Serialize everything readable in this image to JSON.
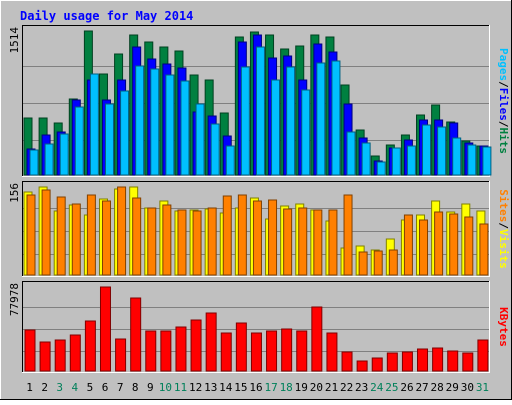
{
  "chart_data": {
    "type": "bar",
    "title": "Daily usage for May 2014",
    "categories": [
      "1",
      "2",
      "3",
      "4",
      "5",
      "6",
      "7",
      "8",
      "9",
      "10",
      "11",
      "12",
      "13",
      "14",
      "15",
      "16",
      "17",
      "18",
      "19",
      "20",
      "21",
      "22",
      "23",
      "24",
      "25",
      "26",
      "27",
      "28",
      "29",
      "30",
      "31"
    ],
    "weekend_days": [
      "3",
      "4",
      "10",
      "11",
      "17",
      "18",
      "24",
      "25",
      "31"
    ],
    "panels": [
      {
        "id": "top",
        "ymax": 1514,
        "ymax_label": "1514",
        "ylabel_parts": [
          "Pages",
          "Files",
          "Hits"
        ],
        "series": [
          {
            "name": "Hits",
            "color": "#008040",
            "values": [
              600,
              600,
              550,
              800,
              1514,
              1060,
              1270,
              1470,
              1400,
              1350,
              1300,
              1050,
              1000,
              650,
              1450,
              1500,
              1470,
              1320,
              1360,
              1470,
              1450,
              950,
              470,
              200,
              320,
              420,
              630,
              740,
              560,
              360,
              310
            ]
          },
          {
            "name": "Files",
            "color": "#0000ff",
            "values": [
              270,
              420,
              450,
              790,
              1000,
              790,
              1000,
              1350,
              1220,
              1170,
              1120,
              660,
              620,
              410,
              1400,
              1470,
              1230,
              1250,
              1000,
              1380,
              1290,
              750,
              390,
              150,
              280,
              370,
              580,
              580,
              550,
              340,
              310
            ]
          },
          {
            "name": "Pages",
            "color": "#00c0ff",
            "values": [
              260,
              330,
              430,
              720,
              1060,
              750,
              880,
              1150,
              1110,
              1050,
              990,
              750,
              540,
              310,
              1140,
              1350,
              1000,
              1140,
              890,
              1180,
              1200,
              450,
              340,
              140,
              280,
              300,
              530,
              500,
              390,
              320,
              290
            ]
          }
        ]
      },
      {
        "id": "middle",
        "ymax": 156,
        "ymax_label": "156",
        "ylabel_parts": [
          "Sites",
          "Visits"
        ],
        "series": [
          {
            "name": "Visits",
            "color": "#ffff00",
            "values": [
              147,
              156,
              113,
              124,
              106,
              135,
              153,
              156,
              118,
              132,
              113,
              116,
              117,
              110,
              118,
              137,
              99,
              123,
              125,
              116,
              96,
              47,
              52,
              45,
              63,
              98,
              107,
              131,
              112,
              126,
              113
            ]
          },
          {
            "name": "Sites",
            "color": "#ff8000",
            "values": [
              141,
              150,
              138,
              126,
              141,
              131,
              156,
              136,
              119,
              124,
              116,
              114,
              118,
              140,
              141,
              131,
              133,
              117,
              119,
              116,
              115,
              141,
              40,
              43,
              45,
              106,
              98,
              111,
              108,
              103,
              90
            ]
          }
        ]
      },
      {
        "id": "bottom",
        "ymax": 77978,
        "ymax_label": "77978",
        "ylabel_parts": [
          "KBytes"
        ],
        "series": [
          {
            "name": "KBytes",
            "color": "#ff0000",
            "values": [
              38000,
              27000,
              29000,
              33000,
              46000,
              77978,
              30000,
              68000,
              37000,
              37000,
              41000,
              47000,
              54000,
              35000,
              45000,
              35000,
              37000,
              39000,
              37000,
              59000,
              35000,
              18000,
              9000,
              12000,
              17000,
              18000,
              20000,
              21000,
              19000,
              17000,
              29000
            ]
          }
        ]
      }
    ]
  }
}
